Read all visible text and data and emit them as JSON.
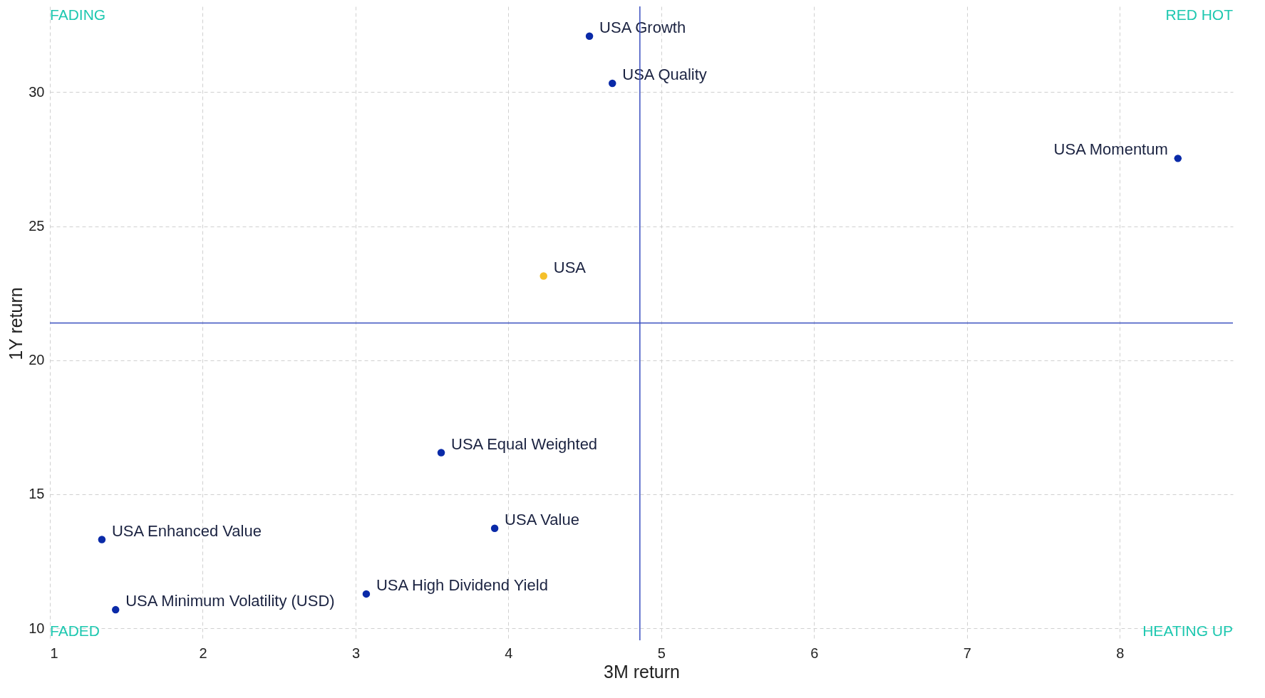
{
  "chart_data": {
    "type": "scatter",
    "xlabel": "3M return",
    "ylabel": "1Y return",
    "xlim": [
      1,
      8.74
    ],
    "ylim": [
      9.55,
      33.2
    ],
    "xticks": [
      1,
      2,
      3,
      4,
      5,
      6,
      7,
      8
    ],
    "yticks": [
      10,
      15,
      20,
      25,
      30
    ],
    "grid": true,
    "marker": "circle",
    "series": [
      {
        "name": "USA Growth",
        "color": "#0a2aa8",
        "x": [
          4.53
        ],
        "values": [
          32.09
        ]
      },
      {
        "name": "USA Quality",
        "color": "#0a2aa8",
        "x": [
          4.68
        ],
        "values": [
          30.33
        ]
      },
      {
        "name": "USA Momentum",
        "color": "#0a2aa8",
        "x": [
          8.38
        ],
        "values": [
          27.53
        ]
      },
      {
        "name": "USA",
        "color": "#f5c02a",
        "x": [
          4.23
        ],
        "values": [
          23.14
        ]
      },
      {
        "name": "USA Equal Weighted",
        "color": "#0a2aa8",
        "x": [
          3.56
        ],
        "values": [
          16.55
        ]
      },
      {
        "name": "USA Value",
        "color": "#0a2aa8",
        "x": [
          3.91
        ],
        "values": [
          13.73
        ]
      },
      {
        "name": "USA Enhanced Value",
        "color": "#0a2aa8",
        "x": [
          1.34
        ],
        "values": [
          13.31
        ]
      },
      {
        "name": "USA High Dividend Yield",
        "color": "#0a2aa8",
        "x": [
          3.07
        ],
        "values": [
          11.28
        ]
      },
      {
        "name": "USA Minimum Volatility (USD)",
        "color": "#0a2aa8",
        "x": [
          1.43
        ],
        "values": [
          10.69
        ]
      }
    ],
    "ref_lines": [
      {
        "axis": "x",
        "value": 4.86,
        "color": "#3a4fc0"
      },
      {
        "axis": "y",
        "value": 21.39,
        "color": "#3a4fc0"
      }
    ],
    "annotations": [
      "FADING",
      "RED HOT",
      "FADED",
      "HEATING UP"
    ]
  }
}
